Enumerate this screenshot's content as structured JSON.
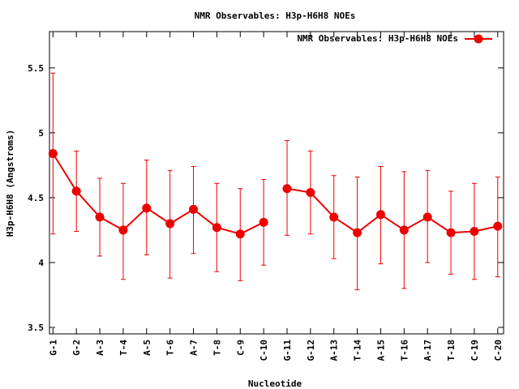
{
  "chart_data": {
    "type": "line",
    "title": "NMR Observables: H3p-H6H8 NOEs",
    "xlabel": "Nucleotide",
    "ylabel": "H3p-H6H8 (Angstroms)",
    "ylim": [
      3.45,
      5.78
    ],
    "yticks": [
      "3.5",
      "4",
      "4.5",
      "5",
      "5.5"
    ],
    "ytick_values": [
      3.5,
      4,
      4.5,
      5,
      5.5
    ],
    "xlim": [
      0.85,
      20.25
    ],
    "grid": false,
    "legend_position": "top-right",
    "categories": [
      "G-1",
      "G-2",
      "A-3",
      "T-4",
      "A-5",
      "T-6",
      "A-7",
      "T-8",
      "C-9",
      "C-10",
      "G-11",
      "G-12",
      "A-13",
      "T-14",
      "A-15",
      "T-16",
      "A-17",
      "T-18",
      "C-19",
      "C-20"
    ],
    "segments": [
      [
        1,
        10
      ],
      [
        11,
        20
      ]
    ],
    "series": [
      {
        "name": "NMR Observables: H3p-H6H8 NOEs",
        "color": "#ee0000",
        "x": [
          1,
          2,
          3,
          4,
          5,
          6,
          7,
          8,
          9,
          10,
          11,
          12,
          13,
          14,
          15,
          16,
          17,
          18,
          19,
          20
        ],
        "values": [
          4.84,
          4.55,
          4.35,
          4.25,
          4.42,
          4.3,
          4.41,
          4.27,
          4.22,
          4.31,
          4.57,
          4.54,
          4.35,
          4.23,
          4.37,
          4.25,
          4.35,
          4.23,
          4.24,
          4.28
        ],
        "err_low": [
          4.22,
          4.24,
          4.05,
          3.87,
          4.06,
          3.88,
          4.07,
          3.93,
          3.86,
          3.98,
          4.21,
          4.22,
          4.03,
          3.79,
          3.99,
          3.8,
          4.0,
          3.91,
          3.87,
          3.89
        ],
        "err_high": [
          5.46,
          4.86,
          4.65,
          4.61,
          4.79,
          4.71,
          4.74,
          4.61,
          4.57,
          4.64,
          4.94,
          4.86,
          4.67,
          4.66,
          4.74,
          4.7,
          4.71,
          4.55,
          4.61,
          4.66
        ]
      }
    ]
  }
}
